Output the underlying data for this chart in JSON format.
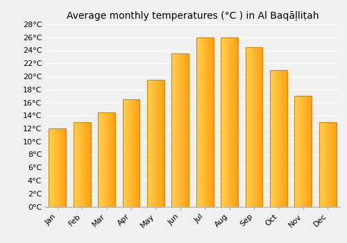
{
  "months": [
    "Jan",
    "Feb",
    "Mar",
    "Apr",
    "May",
    "Jun",
    "Jul",
    "Aug",
    "Sep",
    "Oct",
    "Nov",
    "Dec"
  ],
  "values": [
    12.0,
    13.0,
    14.5,
    16.5,
    19.5,
    23.5,
    26.0,
    26.0,
    24.5,
    21.0,
    17.0,
    13.0
  ],
  "title": "Average monthly temperatures (°C ) in Al Baqāļliṭah",
  "ylim": [
    0,
    28
  ],
  "yticks": [
    0,
    2,
    4,
    6,
    8,
    10,
    12,
    14,
    16,
    18,
    20,
    22,
    24,
    26,
    28
  ],
  "bar_color_left": "#FFD050",
  "bar_color_right": "#FFA010",
  "bar_edge_color": "#CC8800",
  "background_color": "#f0f0f0",
  "grid_color": "#ffffff",
  "title_fontsize": 10,
  "tick_fontsize": 8
}
